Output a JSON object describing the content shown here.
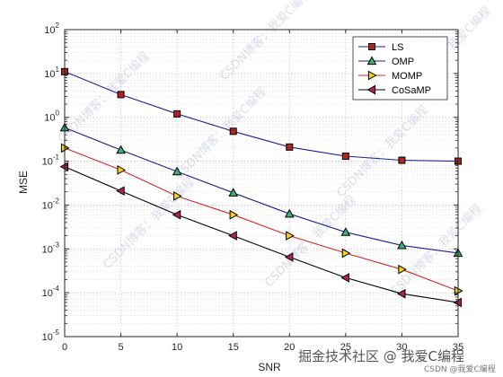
{
  "chart_data": {
    "type": "line",
    "title": "",
    "xlabel": "SNR",
    "ylabel": "MSE",
    "xlim": [
      0,
      35
    ],
    "ylim": [
      1e-05,
      100
    ],
    "yscale": "log",
    "grid": true,
    "legend_position": "top-right",
    "x": [
      0,
      5,
      10,
      15,
      20,
      25,
      30,
      35
    ],
    "x_ticks": [
      "0",
      "5",
      "10",
      "15",
      "20",
      "25",
      "30",
      "35"
    ],
    "y_ticks": [
      {
        "value": 1e-05,
        "base": "10",
        "exp": "-5"
      },
      {
        "value": 0.0001,
        "base": "10",
        "exp": "-4"
      },
      {
        "value": 0.001,
        "base": "10",
        "exp": "-3"
      },
      {
        "value": 0.01,
        "base": "10",
        "exp": "-2"
      },
      {
        "value": 0.1,
        "base": "10",
        "exp": "-1"
      },
      {
        "value": 1,
        "base": "10",
        "exp": "0"
      },
      {
        "value": 10,
        "base": "10",
        "exp": "1"
      },
      {
        "value": 100,
        "base": "10",
        "exp": "2"
      }
    ],
    "series": [
      {
        "name": "LS",
        "color": "#1f1f8f",
        "marker": "square",
        "marker_fill": "#b22222",
        "values": [
          11,
          3.3,
          1.2,
          0.48,
          0.21,
          0.13,
          0.105,
          0.1
        ]
      },
      {
        "name": "OMP",
        "color": "#1f1f8f",
        "marker": "triangle-up",
        "marker_fill": "#3cb371",
        "values": [
          0.58,
          0.18,
          0.058,
          0.019,
          0.0063,
          0.0024,
          0.0012,
          0.0008
        ]
      },
      {
        "name": "MOMP",
        "color": "#d62728",
        "marker": "triangle-right",
        "marker_fill": "#f2d21b",
        "values": [
          0.2,
          0.063,
          0.016,
          0.006,
          0.002,
          0.0008,
          0.00034,
          0.00011
        ]
      },
      {
        "name": "CoSaMP",
        "color": "#000000",
        "marker": "triangle-left",
        "marker_fill": "#b22253",
        "values": [
          0.075,
          0.021,
          0.006,
          0.002,
          0.00065,
          0.00022,
          9.5e-05,
          6e-05
        ]
      }
    ]
  },
  "watermarks": {
    "diagonal": "CSDN博客：我爱C编程",
    "footer": "掘金技术社区 @ 我爱C编程",
    "footer_small": "CSDN @我爱C编程"
  }
}
